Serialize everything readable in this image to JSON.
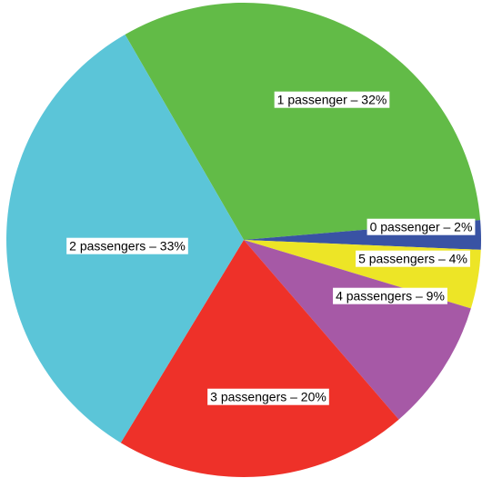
{
  "chart_data": {
    "type": "pie",
    "values": [
      32,
      2,
      4,
      9,
      20,
      33
    ],
    "value_labels": [
      "1 passenger – 32%",
      "0 passenger – 2%",
      "5 passengers – 4%",
      "4 passengers – 9%",
      "3 passengers – 20%",
      "2 passengers – 33%"
    ],
    "colors": [
      "#62bb47",
      "#3953a4",
      "#ede526",
      "#a659a6",
      "#ee3129",
      "#5bc5d8"
    ]
  }
}
